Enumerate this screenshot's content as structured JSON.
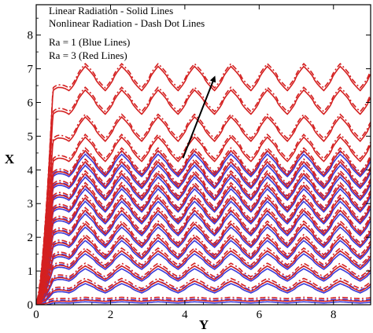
{
  "chart_data": {
    "type": "line",
    "title": "",
    "xlabel": "Y",
    "ylabel": "X",
    "xlim": [
      0,
      9
    ],
    "ylim": [
      0,
      8.9
    ],
    "x_ticks": [
      "0",
      "2",
      "4",
      "6",
      "8"
    ],
    "y_ticks": [
      "0",
      "1",
      "2",
      "3",
      "4",
      "5",
      "6",
      "7",
      "8"
    ],
    "grid": false,
    "legend_placement": "top-left",
    "legend_lines": [
      "Linear Radiation - Solid Lines",
      "Nonlinear Radiation - Dash Dot Lines",
      "Ra = 1 (Blue Lines)",
      "Ra = 3 (Red Lines)"
    ],
    "wave": {
      "period": 0.98,
      "first_peak_y": 1.32,
      "leading_edge_y": 0.45
    },
    "contour_levels": [
      {
        "base": 0.1,
        "amp": 0.04
      },
      {
        "base": 0.4,
        "amp": 0.3
      },
      {
        "base": 0.75,
        "amp": 0.4
      },
      {
        "base": 1.1,
        "amp": 0.5
      },
      {
        "base": 1.4,
        "amp": 0.6
      },
      {
        "base": 1.75,
        "amp": 0.65
      },
      {
        "base": 2.1,
        "amp": 0.7
      },
      {
        "base": 2.45,
        "amp": 0.72
      },
      {
        "base": 2.8,
        "amp": 0.74
      },
      {
        "base": 3.15,
        "amp": 0.74
      },
      {
        "base": 3.5,
        "amp": 0.74
      },
      {
        "base": 3.85,
        "amp": 0.72
      },
      {
        "base": 4.25,
        "amp": 0.72
      },
      {
        "base": 4.85,
        "amp": 0.72
      },
      {
        "base": 5.65,
        "amp": 0.72
      },
      {
        "base": 6.35,
        "amp": 0.72
      }
    ],
    "blue_level_count": 12,
    "series": [
      {
        "label_ref": "Ra = 1 (Blue Lines)",
        "color": "#3a3ad9"
      },
      {
        "label_ref": "Ra = 3 (Red Lines)",
        "color": "#d42020"
      }
    ],
    "arrow": {
      "from": [
        3.95,
        4.35
      ],
      "to": [
        4.8,
        6.75
      ]
    }
  }
}
